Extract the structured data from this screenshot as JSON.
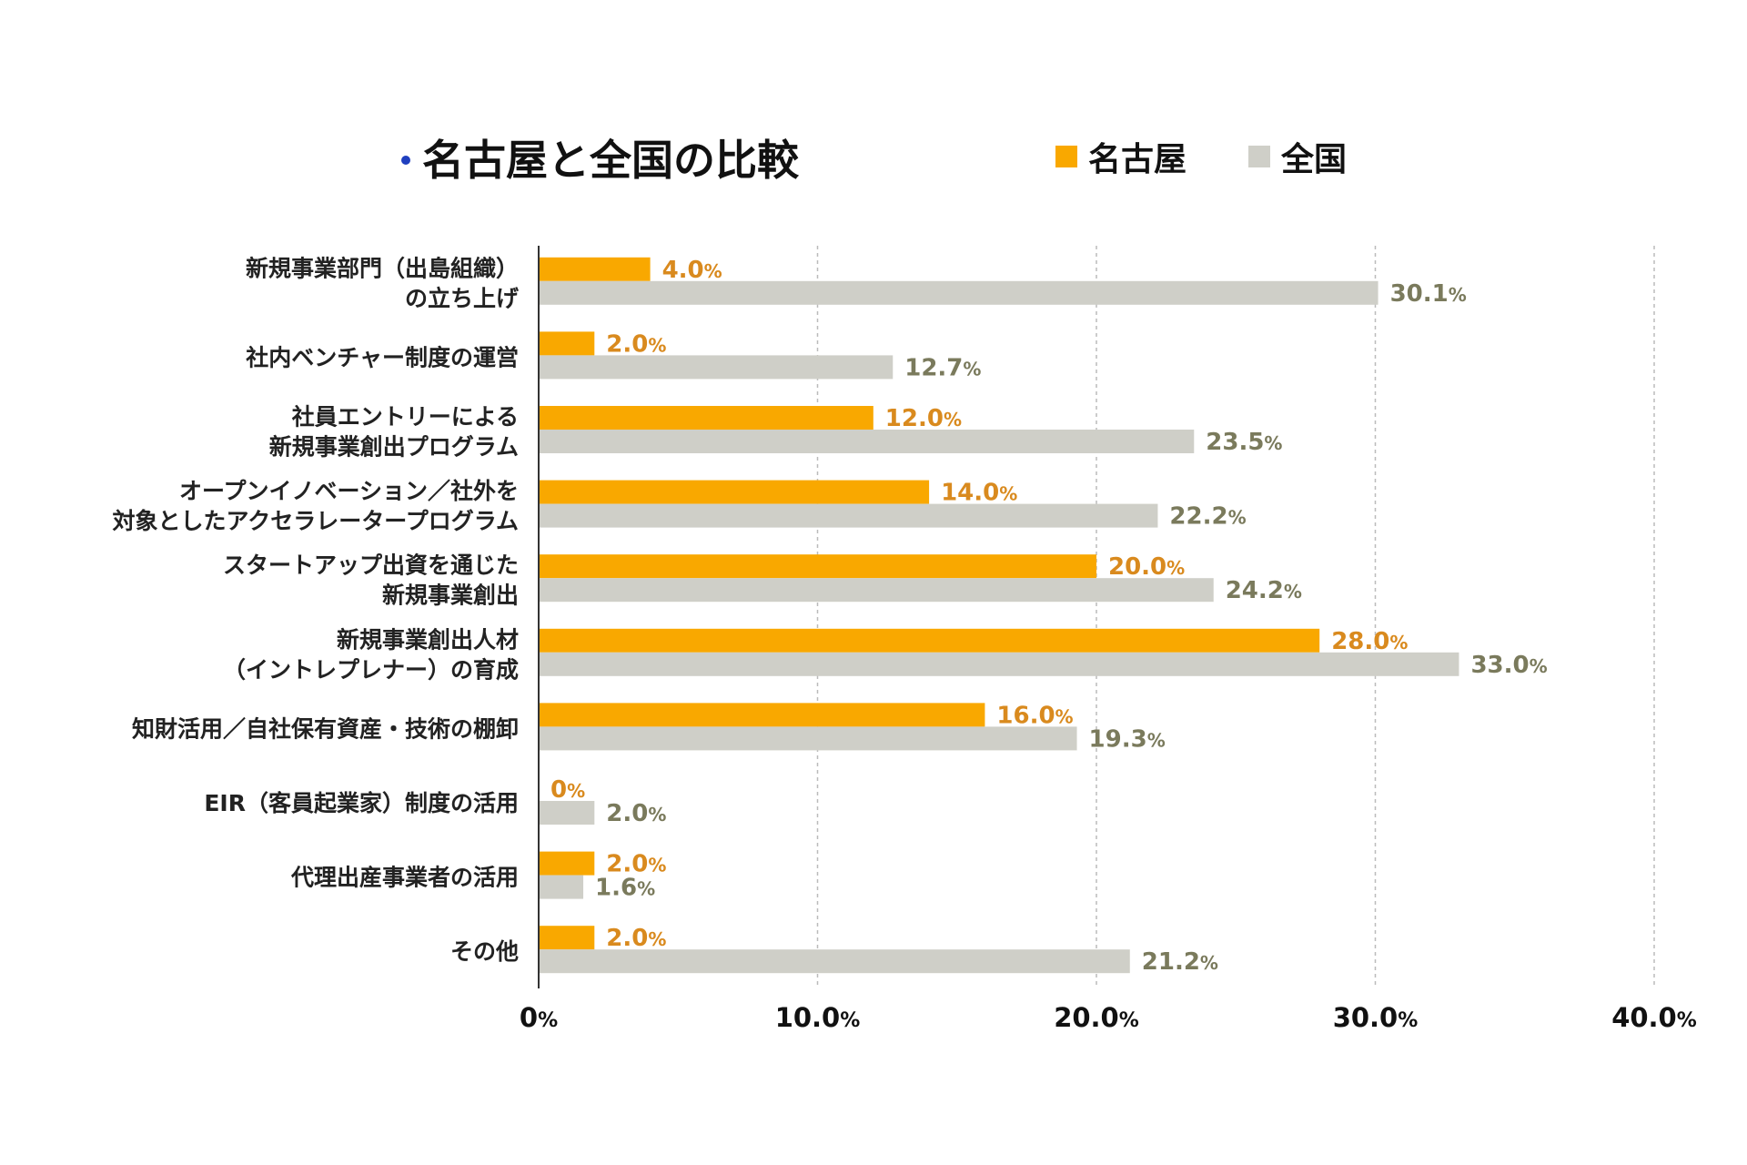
{
  "chart_data": {
    "type": "bar",
    "orientation": "horizontal",
    "title": "名古屋と全国の比較",
    "legend_position": "top-right",
    "series": [
      {
        "name": "名古屋",
        "color": "#F9A800",
        "label_color": "#D98A1E",
        "values": [
          4.0,
          2.0,
          12.0,
          14.0,
          20.0,
          28.0,
          16.0,
          0,
          2.0,
          2.0
        ],
        "labels": [
          "4.0",
          "2.0",
          "12.0",
          "14.0",
          "20.0",
          "28.0",
          "16.0",
          "0",
          "2.0",
          "2.0"
        ]
      },
      {
        "name": "全国",
        "color": "#CFCFC8",
        "label_color": "#7A7A5C",
        "values": [
          30.1,
          12.7,
          23.5,
          22.2,
          24.2,
          33.0,
          19.3,
          2.0,
          1.6,
          21.2
        ],
        "labels": [
          "30.1",
          "12.7",
          "23.5",
          "22.2",
          "24.2",
          "33.0",
          "19.3",
          "2.0",
          "1.6",
          "21.2"
        ]
      }
    ],
    "categories": [
      [
        "新規事業部門（出島組織）",
        "の立ち上げ"
      ],
      [
        "社内ベンチャー制度の運営"
      ],
      [
        "社員エントリーによる",
        "新規事業創出プログラム"
      ],
      [
        "オープンイノベーション／社外を",
        "対象としたアクセラレータープログラム"
      ],
      [
        "スタートアップ出資を通じた",
        "新規事業創出"
      ],
      [
        "新規事業創出人材",
        "（イントレプレナー）の育成"
      ],
      [
        "知財活用／自社保有資産・技術の棚卸"
      ],
      [
        "EIR（客員起業家）制度の活用"
      ],
      [
        "代理出産事業者の活用"
      ],
      [
        "その他"
      ]
    ],
    "percent_suffix": "%",
    "xaxis": {
      "min": 0,
      "max": 40,
      "ticks": [
        0,
        10,
        20,
        30,
        40
      ],
      "tick_labels": [
        "0",
        "10.0",
        "20.0",
        "30.0",
        "40.0"
      ],
      "grid": "dashed"
    },
    "colors": {
      "title_dot": "#1F3FBF",
      "axis": "#333333",
      "grid": "#BBBBBB"
    }
  }
}
